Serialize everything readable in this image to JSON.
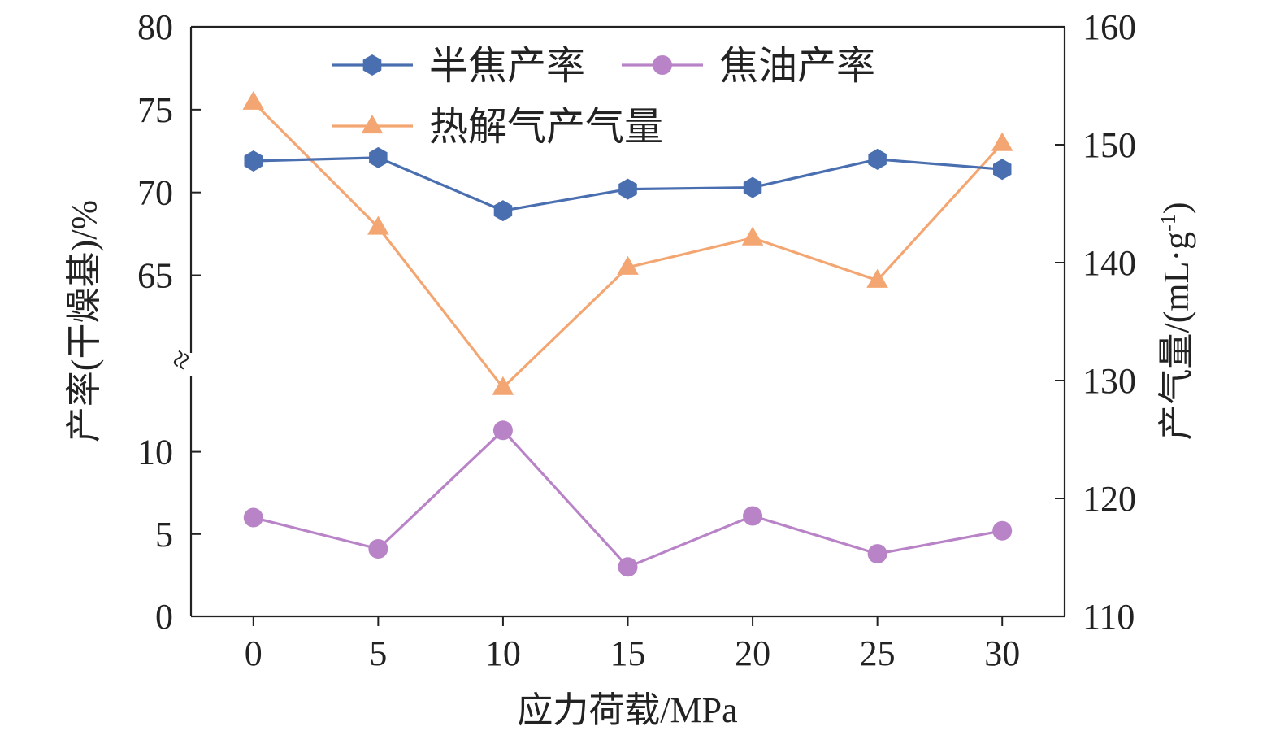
{
  "chart_data": {
    "type": "line",
    "x": [
      0,
      5,
      10,
      15,
      20,
      25,
      30
    ],
    "xlabel": "应力荷载/MPa",
    "x_ticks": [
      "0",
      "5",
      "10",
      "15",
      "20",
      "25",
      "30"
    ],
    "xlim": [
      -2.5,
      32.5
    ],
    "y_left": {
      "label": "产率(干燥基)/%",
      "broken_axis": true,
      "lower_segment": {
        "range": [
          0,
          12.5
        ],
        "ticks": [
          "0",
          "5",
          "10"
        ]
      },
      "upper_segment": {
        "range": [
          61,
          80
        ],
        "ticks": [
          "65",
          "70",
          "75",
          "80"
        ]
      }
    },
    "y_right": {
      "label": "产气量/(mL·g",
      "label_superscript": "-1",
      "label_suffix": ")",
      "range": [
        110,
        160
      ],
      "ticks": [
        "110",
        "120",
        "130",
        "140",
        "150",
        "160"
      ]
    },
    "break_symbol": "≈",
    "grid": false,
    "legend_position": "top-center",
    "series": [
      {
        "name": "半焦产率",
        "axis": "left",
        "marker": "hexagon",
        "color": "#4a6fb0",
        "values": [
          71.9,
          72.1,
          68.9,
          70.2,
          70.3,
          72.0,
          71.4
        ]
      },
      {
        "name": "焦油产率",
        "axis": "left",
        "marker": "circle",
        "color": "#b983c7",
        "values": [
          6.0,
          4.1,
          11.3,
          3.0,
          6.1,
          3.8,
          5.2
        ]
      },
      {
        "name": "热解气产气量",
        "axis": "right",
        "marker": "triangle",
        "color": "#f4a672",
        "values": [
          153.6,
          143.0,
          129.4,
          139.6,
          142.1,
          138.5,
          150.1
        ]
      }
    ]
  }
}
